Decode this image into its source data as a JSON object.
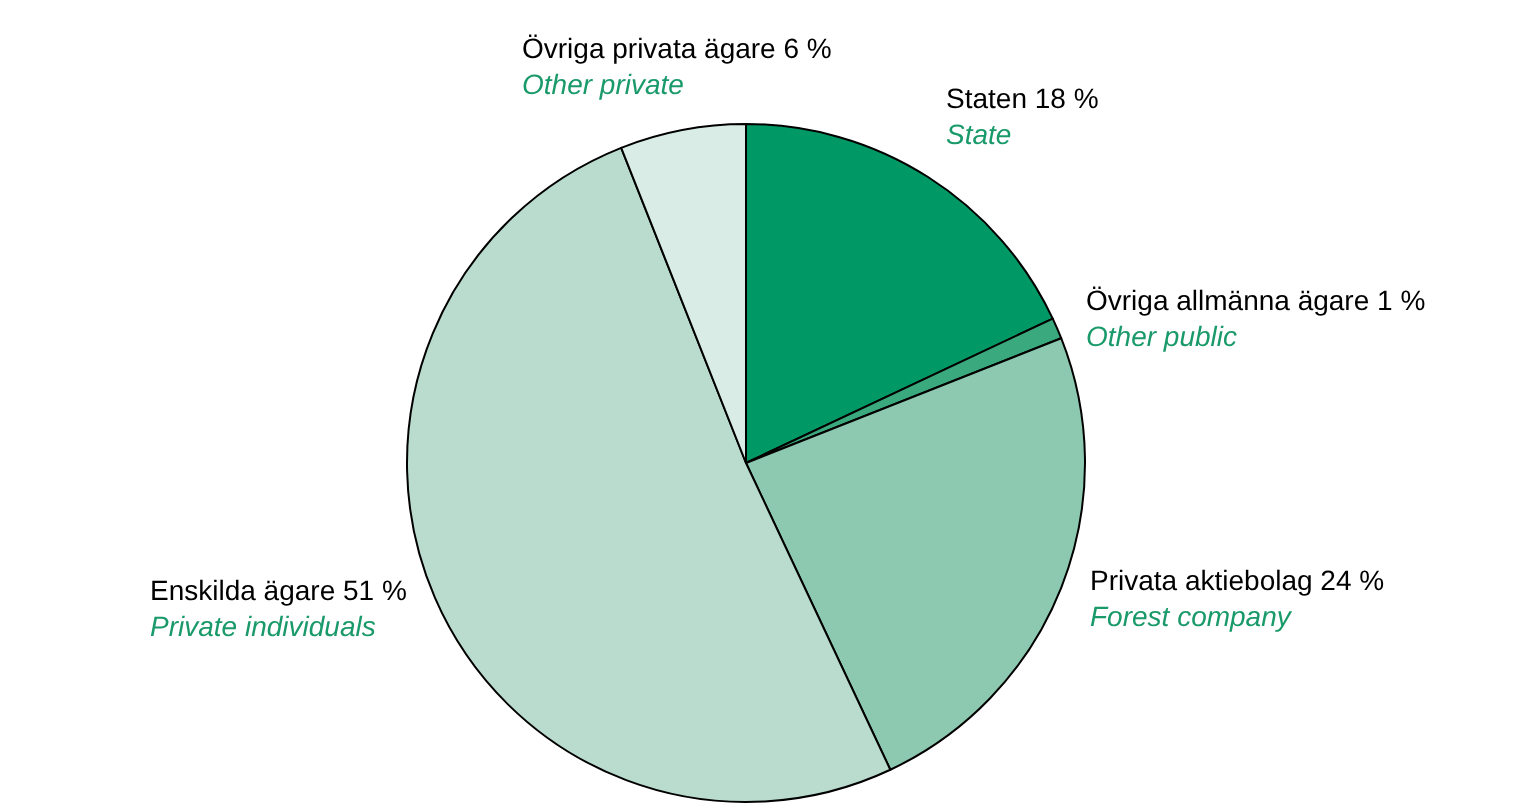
{
  "chart_data": {
    "type": "pie",
    "categories": [
      "Staten 18 %\nState",
      "Övriga allmänna ägare 1 %\nOther public",
      "Privata aktiebolag 24 %\nForest company",
      "Enskilda ägare 51 %\nPrivate individuals",
      "Övriga privata ägare 6 %\nOther private"
    ],
    "values": [
      18,
      1,
      24,
      51,
      6
    ],
    "colors": [
      "#009966",
      "#3aaa7e",
      "#8dc9b0",
      "#b9dccf",
      "#d9ede6"
    ]
  }
}
